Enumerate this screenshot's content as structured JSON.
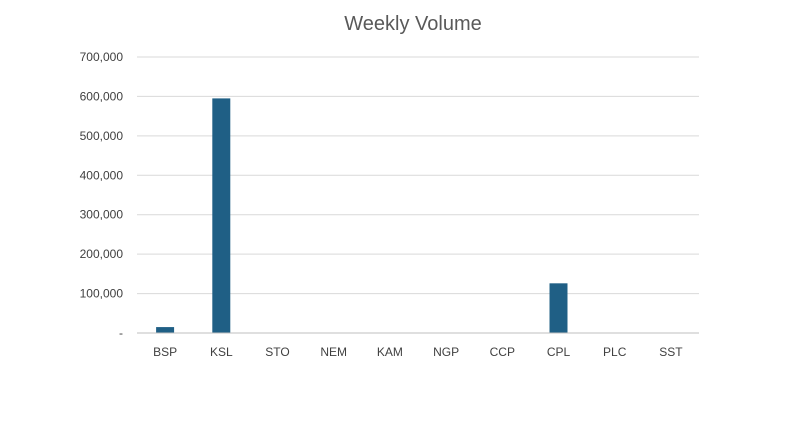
{
  "chart_data": {
    "type": "bar",
    "title": "Weekly Volume",
    "xlabel": "",
    "ylabel": "",
    "categories": [
      "BSP",
      "KSL",
      "STO",
      "NEM",
      "KAM",
      "NGP",
      "CCP",
      "CPL",
      "PLC",
      "SST"
    ],
    "values": [
      15000,
      595000,
      0,
      0,
      0,
      0,
      0,
      126000,
      0,
      0
    ],
    "ylim": [
      0,
      700000
    ],
    "y_ticks": [
      0,
      100000,
      200000,
      300000,
      400000,
      500000,
      600000,
      700000
    ],
    "y_tick_labels": [
      "-",
      "100,000",
      "200,000",
      "300,000",
      "400,000",
      "500,000",
      "600,000",
      "700,000"
    ],
    "grid": true,
    "legend": "none",
    "bar_color": "#1f5f85"
  }
}
